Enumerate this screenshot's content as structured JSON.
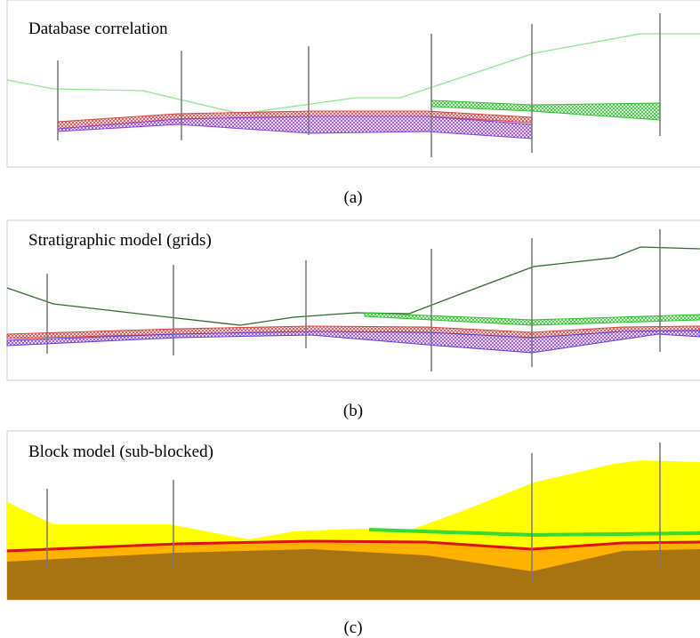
{
  "panels": [
    {
      "title": "Database correlation",
      "caption": "(a)"
    },
    {
      "title": "Stratigraphic model (grids)",
      "caption": "(b)"
    },
    {
      "title": "Block model (sub-blocked)",
      "caption": "(c)"
    }
  ]
}
